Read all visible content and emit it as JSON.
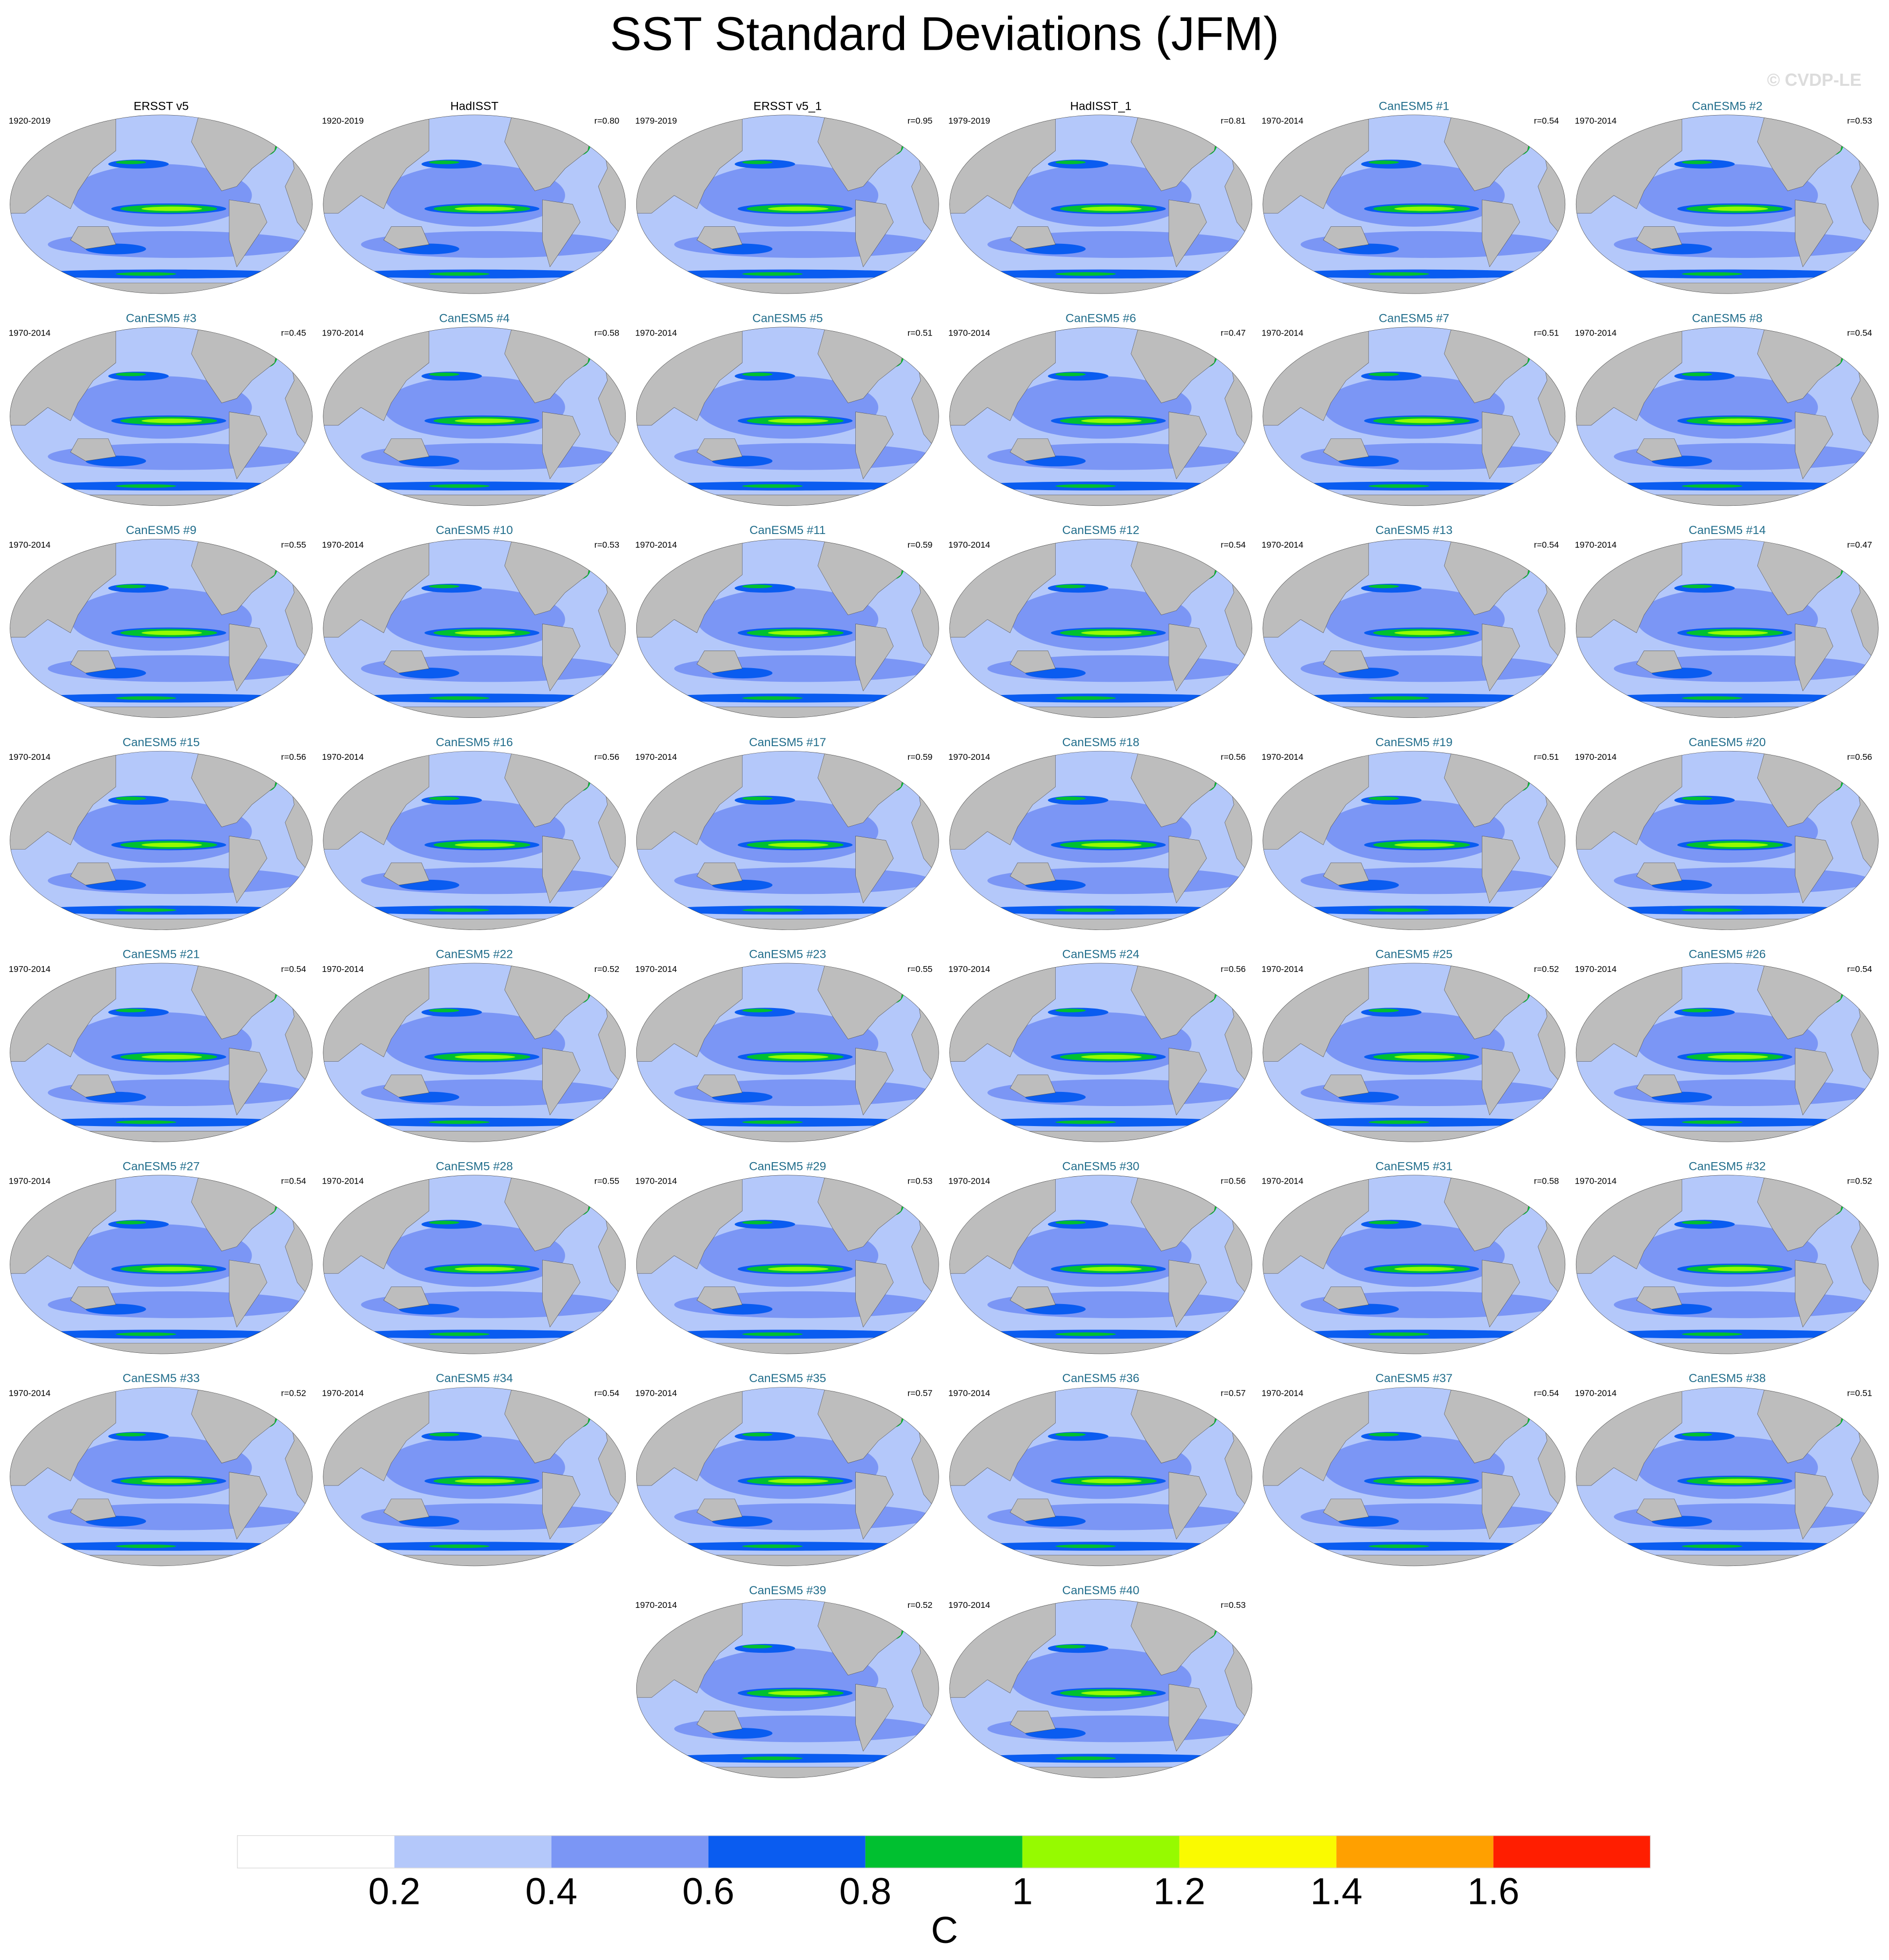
{
  "title": "SST Standard Deviations (JFM)",
  "watermark": "© CVDP-LE",
  "panels": [
    {
      "title": "ERSST v5",
      "title_color": "#000000",
      "period": "1920-2019"
    },
    {
      "title": "HadISST",
      "title_color": "#000000",
      "period": "1920-2019",
      "r": "r=0.80"
    },
    {
      "title": "ERSST v5_1",
      "title_color": "#000000",
      "period": "1979-2019",
      "r": "r=0.95"
    },
    {
      "title": "HadISST_1",
      "title_color": "#000000",
      "period": "1979-2019",
      "r": "r=0.81"
    },
    {
      "title": "CanESM5 #1",
      "title_color": "#226e8c",
      "period": "1970-2014",
      "r": "r=0.54"
    },
    {
      "title": "CanESM5 #2",
      "title_color": "#226e8c",
      "period": "1970-2014",
      "r": "r=0.53"
    },
    {
      "title": "CanESM5 #3",
      "title_color": "#226e8c",
      "period": "1970-2014",
      "r": "r=0.45"
    },
    {
      "title": "CanESM5 #4",
      "title_color": "#226e8c",
      "period": "1970-2014",
      "r": "r=0.58"
    },
    {
      "title": "CanESM5 #5",
      "title_color": "#226e8c",
      "period": "1970-2014",
      "r": "r=0.51"
    },
    {
      "title": "CanESM5 #6",
      "title_color": "#226e8c",
      "period": "1970-2014",
      "r": "r=0.47"
    },
    {
      "title": "CanESM5 #7",
      "title_color": "#226e8c",
      "period": "1970-2014",
      "r": "r=0.51"
    },
    {
      "title": "CanESM5 #8",
      "title_color": "#226e8c",
      "period": "1970-2014",
      "r": "r=0.54"
    },
    {
      "title": "CanESM5 #9",
      "title_color": "#226e8c",
      "period": "1970-2014",
      "r": "r=0.55"
    },
    {
      "title": "CanESM5 #10",
      "title_color": "#226e8c",
      "period": "1970-2014",
      "r": "r=0.53"
    },
    {
      "title": "CanESM5 #11",
      "title_color": "#226e8c",
      "period": "1970-2014",
      "r": "r=0.59"
    },
    {
      "title": "CanESM5 #12",
      "title_color": "#226e8c",
      "period": "1970-2014",
      "r": "r=0.54"
    },
    {
      "title": "CanESM5 #13",
      "title_color": "#226e8c",
      "period": "1970-2014",
      "r": "r=0.54"
    },
    {
      "title": "CanESM5 #14",
      "title_color": "#226e8c",
      "period": "1970-2014",
      "r": "r=0.47"
    },
    {
      "title": "CanESM5 #15",
      "title_color": "#226e8c",
      "period": "1970-2014",
      "r": "r=0.56"
    },
    {
      "title": "CanESM5 #16",
      "title_color": "#226e8c",
      "period": "1970-2014",
      "r": "r=0.56"
    },
    {
      "title": "CanESM5 #17",
      "title_color": "#226e8c",
      "period": "1970-2014",
      "r": "r=0.59"
    },
    {
      "title": "CanESM5 #18",
      "title_color": "#226e8c",
      "period": "1970-2014",
      "r": "r=0.56"
    },
    {
      "title": "CanESM5 #19",
      "title_color": "#226e8c",
      "period": "1970-2014",
      "r": "r=0.51"
    },
    {
      "title": "CanESM5 #20",
      "title_color": "#226e8c",
      "period": "1970-2014",
      "r": "r=0.56"
    },
    {
      "title": "CanESM5 #21",
      "title_color": "#226e8c",
      "period": "1970-2014",
      "r": "r=0.54"
    },
    {
      "title": "CanESM5 #22",
      "title_color": "#226e8c",
      "period": "1970-2014",
      "r": "r=0.52"
    },
    {
      "title": "CanESM5 #23",
      "title_color": "#226e8c",
      "period": "1970-2014",
      "r": "r=0.55"
    },
    {
      "title": "CanESM5 #24",
      "title_color": "#226e8c",
      "period": "1970-2014",
      "r": "r=0.56"
    },
    {
      "title": "CanESM5 #25",
      "title_color": "#226e8c",
      "period": "1970-2014",
      "r": "r=0.52"
    },
    {
      "title": "CanESM5 #26",
      "title_color": "#226e8c",
      "period": "1970-2014",
      "r": "r=0.54"
    },
    {
      "title": "CanESM5 #27",
      "title_color": "#226e8c",
      "period": "1970-2014",
      "r": "r=0.54"
    },
    {
      "title": "CanESM5 #28",
      "title_color": "#226e8c",
      "period": "1970-2014",
      "r": "r=0.55"
    },
    {
      "title": "CanESM5 #29",
      "title_color": "#226e8c",
      "period": "1970-2014",
      "r": "r=0.53"
    },
    {
      "title": "CanESM5 #30",
      "title_color": "#226e8c",
      "period": "1970-2014",
      "r": "r=0.56"
    },
    {
      "title": "CanESM5 #31",
      "title_color": "#226e8c",
      "period": "1970-2014",
      "r": "r=0.58"
    },
    {
      "title": "CanESM5 #32",
      "title_color": "#226e8c",
      "period": "1970-2014",
      "r": "r=0.52"
    },
    {
      "title": "CanESM5 #33",
      "title_color": "#226e8c",
      "period": "1970-2014",
      "r": "r=0.52"
    },
    {
      "title": "CanESM5 #34",
      "title_color": "#226e8c",
      "period": "1970-2014",
      "r": "r=0.54"
    },
    {
      "title": "CanESM5 #35",
      "title_color": "#226e8c",
      "period": "1970-2014",
      "r": "r=0.57"
    },
    {
      "title": "CanESM5 #36",
      "title_color": "#226e8c",
      "period": "1970-2014",
      "r": "r=0.57"
    },
    {
      "title": "CanESM5 #37",
      "title_color": "#226e8c",
      "period": "1970-2014",
      "r": "r=0.54"
    },
    {
      "title": "CanESM5 #38",
      "title_color": "#226e8c",
      "period": "1970-2014",
      "r": "r=0.51"
    },
    {
      "title": "CanESM5 #39",
      "title_color": "#226e8c",
      "period": "1970-2014",
      "r": "r=0.52"
    },
    {
      "title": "CanESM5 #40",
      "title_color": "#226e8c",
      "period": "1970-2014",
      "r": "r=0.53"
    }
  ],
  "colorbar": {
    "levels": [
      0.2,
      0.4,
      0.6,
      0.8,
      1,
      1.2,
      1.4,
      1.6
    ],
    "colors": [
      "#ffffff",
      "#b4c8fa",
      "#7b96f5",
      "#0a5cf0",
      "#00c030",
      "#96fa00",
      "#fafa00",
      "#ffa000",
      "#ff1e00"
    ],
    "label": "C"
  }
}
